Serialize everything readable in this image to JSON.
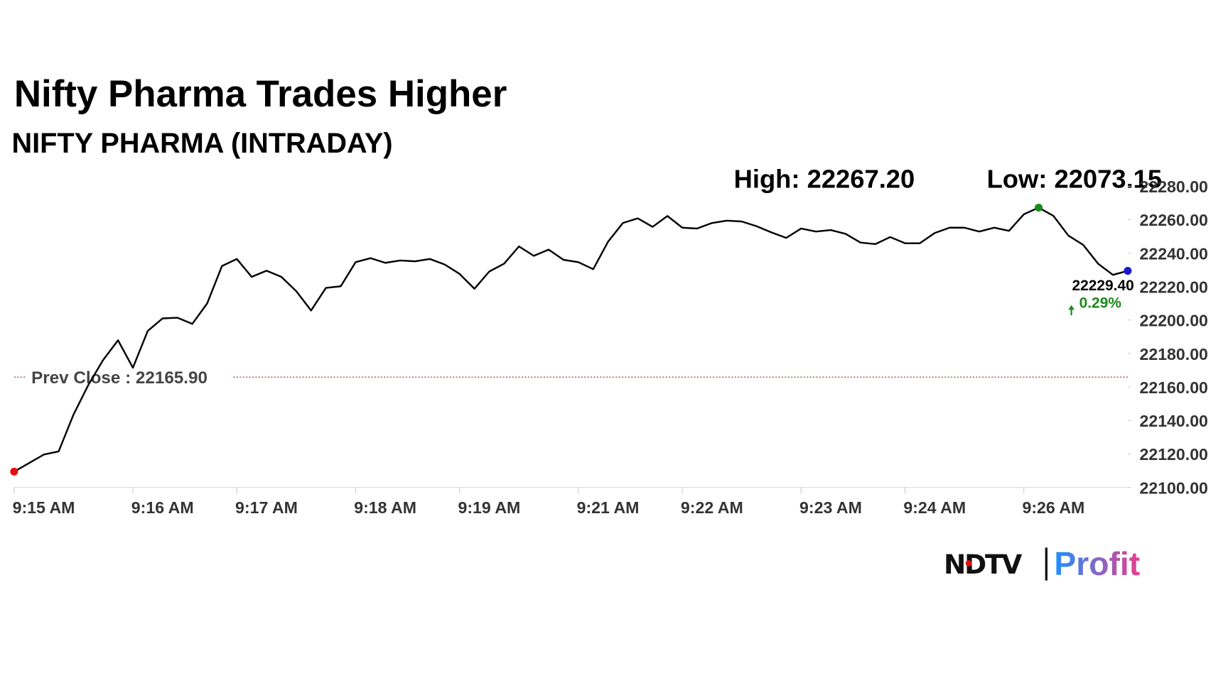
{
  "chart_data": {
    "type": "line",
    "title": "Nifty Pharma Trades Higher",
    "subtitle": "NIFTY PHARMA (INTRADAY)",
    "high_label": "High: 22267.20",
    "low_label": "Low: 22073.15",
    "categories": [
      "9:15 AM",
      null,
      null,
      null,
      null,
      null,
      null,
      null,
      "9:16 AM",
      null,
      null,
      null,
      null,
      null,
      null,
      "9:17 AM",
      null,
      null,
      null,
      null,
      null,
      null,
      null,
      "9:18 AM",
      null,
      null,
      null,
      null,
      null,
      null,
      "9:19 AM",
      null,
      null,
      null,
      null,
      null,
      null,
      null,
      "9:21 AM",
      null,
      null,
      null,
      null,
      null,
      null,
      "9:22 AM",
      null,
      null,
      null,
      null,
      null,
      null,
      null,
      "9:23 AM",
      null,
      null,
      null,
      null,
      null,
      null,
      "9:24 AM",
      null,
      null,
      null,
      null,
      null,
      null,
      null,
      "9:26 AM",
      null,
      null,
      null,
      null,
      null,
      null,
      null
    ],
    "series": [
      {
        "name": "NIFTY PHARMA",
        "color": "#000000",
        "values": [
          22109.4,
          22114.5,
          22119.6,
          22121.5,
          22143.5,
          22161.2,
          22176.2,
          22187.9,
          22171.5,
          22193.5,
          22201,
          22201.4,
          22197.7,
          22209.9,
          22232.3,
          22236.5,
          22225.8,
          22229.5,
          22225.8,
          22217.3,
          22205.7,
          22219.2,
          22220.2,
          22234.6,
          22237,
          22234.2,
          22235.6,
          22235.1,
          22236.5,
          22233.2,
          22227.6,
          22218.7,
          22229,
          22233.7,
          22244,
          22238.4,
          22242.1,
          22236,
          22234.6,
          22230.4,
          22246.8,
          22258,
          22260.8,
          22255.7,
          22262.2,
          22255.2,
          22254.7,
          22258,
          22259.4,
          22258.9,
          22256.1,
          22252.4,
          22249.1,
          22254.7,
          22252.9,
          22253.8,
          22251.5,
          22246.3,
          22245.4,
          22249.6,
          22245.9,
          22245.9,
          22252,
          22255.2,
          22255.2,
          22252.9,
          22255.2,
          22253.3,
          22263.2,
          22267.2,
          22262.2,
          22250.5,
          22244.9,
          22233.7,
          22227,
          22229.4
        ]
      }
    ],
    "ylim": [
      22100,
      22280
    ],
    "yticks": [
      {
        "value": 22100,
        "label": "22100.00"
      },
      {
        "value": 22120,
        "label": "22120.00"
      },
      {
        "value": 22140,
        "label": "22140.00"
      },
      {
        "value": 22160,
        "label": "22160.00"
      },
      {
        "value": 22180,
        "label": "22180.00"
      },
      {
        "value": 22200,
        "label": "22200.00"
      },
      {
        "value": 22220,
        "label": "22220.00"
      },
      {
        "value": 22240,
        "label": "22240.00"
      },
      {
        "value": 22260,
        "label": "22260.00"
      },
      {
        "value": 22280,
        "label": "22280.00"
      }
    ],
    "prev_close": {
      "value": 22165.9,
      "label": "Prev Close : 22165.90",
      "color": "#a03030"
    },
    "last_label": "22229.40",
    "change_label": "0.29%",
    "change_color": "#1a8a1a",
    "start_color": "#e01010",
    "high_color": "#1a8a1a",
    "last_color": "#1a1acc",
    "logo": {
      "left": "NDTV",
      "right": "Profit"
    }
  }
}
